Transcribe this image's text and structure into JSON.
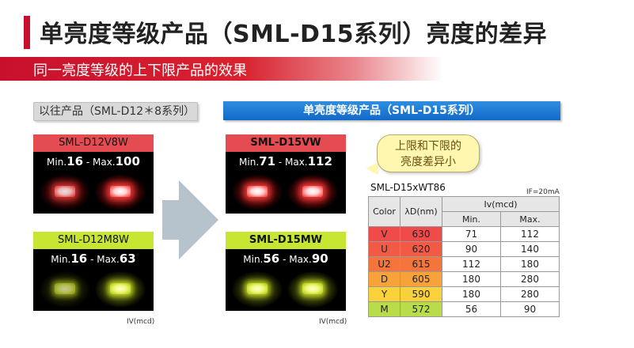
{
  "title": "单亮度等级产品（SML-D15系列）亮度的差异",
  "subtitle": "同一亮度等级的上下限产品的效果",
  "left_header": "以往产品（SML-D12＊8系列）",
  "right_header": "单亮度等级产品（SML-D15系列）",
  "panels": {
    "old_red": {
      "label": "SML-D12V8W",
      "min_prefix": "Min.",
      "min": "16",
      "sep": " - Max.",
      "max": "100"
    },
    "old_green": {
      "label": "SML-D12M8W",
      "min_prefix": "Min.",
      "min": "16",
      "sep": " - Max.",
      "max": "63"
    },
    "new_red": {
      "label": "SML-D15VW",
      "min_prefix": "Min.",
      "min": "71",
      "sep": " - Max.",
      "max": "112"
    },
    "new_green": {
      "label": "SML-D15MW",
      "min_prefix": "Min.",
      "min": "56",
      "sep": " - Max.",
      "max": "90"
    }
  },
  "unit_label": "IV(mcd)",
  "bubble": {
    "line1": "上限和下限的",
    "line2": "亮度差异小"
  },
  "table": {
    "title": "SML-D15xWT86",
    "condition": "IF=20mA",
    "headers": {
      "color": "Color",
      "wavelength": "λD(nm)",
      "iv": "Iv(mcd)",
      "min": "Min.",
      "max": "Max."
    },
    "rows": [
      {
        "color": "V",
        "wavelength": "630",
        "min": "71",
        "max": "112",
        "bg": "#f04a4a"
      },
      {
        "color": "U",
        "wavelength": "620",
        "min": "90",
        "max": "140",
        "bg": "#f25a46"
      },
      {
        "color": "U2",
        "wavelength": "615",
        "min": "112",
        "max": "180",
        "bg": "#f4743c"
      },
      {
        "color": "D",
        "wavelength": "605",
        "min": "180",
        "max": "280",
        "bg": "#f7a33a"
      },
      {
        "color": "Y",
        "wavelength": "590",
        "min": "180",
        "max": "280",
        "bg": "#f9d13a"
      },
      {
        "color": "M",
        "wavelength": "572",
        "min": "56",
        "max": "90",
        "bg": "#b9dc4a"
      }
    ]
  },
  "colors": {
    "accent_red": "#c8102e",
    "accent_blue": "#1169c9"
  }
}
